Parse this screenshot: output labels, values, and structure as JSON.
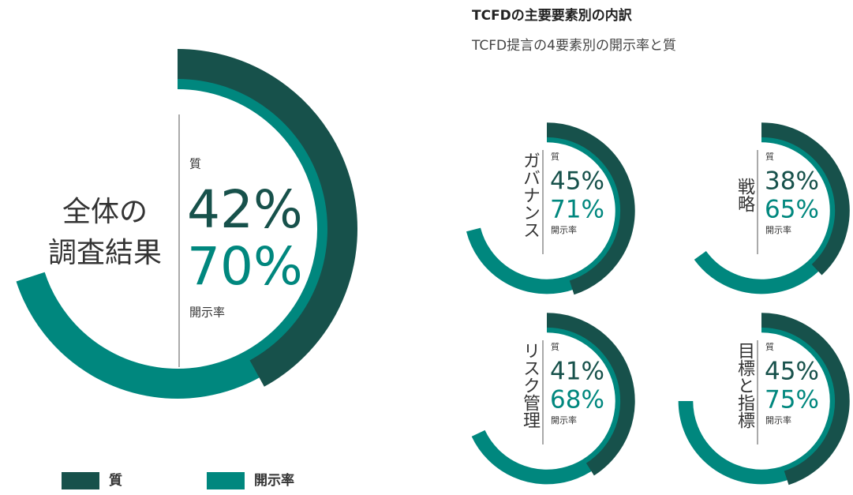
{
  "header": {
    "title": "TCFDの主要要素別の内訳",
    "subtitle": "TCFD提言の4要素別の開示率と質"
  },
  "chart_data": [
    {
      "type": "gauge",
      "title": [
        "全体の",
        "調査結果"
      ],
      "ylim": [
        0,
        100
      ],
      "series": [
        {
          "name": "質",
          "color": "#17514b",
          "values": [
            42
          ],
          "value_labels": [
            "42%"
          ]
        },
        {
          "name": "開示率",
          "color": "#00877e",
          "values": [
            70
          ],
          "value_labels": [
            "70%"
          ]
        }
      ]
    },
    {
      "type": "gauge",
      "title": "ガバナンス",
      "ylim": [
        0,
        100
      ],
      "series": [
        {
          "name": "質",
          "color": "#17514b",
          "values": [
            45
          ],
          "value_labels": [
            "45%"
          ]
        },
        {
          "name": "開示率",
          "color": "#00877e",
          "values": [
            71
          ],
          "value_labels": [
            "71%"
          ]
        }
      ]
    },
    {
      "type": "gauge",
      "title": "戦略",
      "ylim": [
        0,
        100
      ],
      "series": [
        {
          "name": "質",
          "color": "#17514b",
          "values": [
            38
          ],
          "value_labels": [
            "38%"
          ]
        },
        {
          "name": "開示率",
          "color": "#00877e",
          "values": [
            65
          ],
          "value_labels": [
            "65%"
          ]
        }
      ]
    },
    {
      "type": "gauge",
      "title": "リスク管理",
      "ylim": [
        0,
        100
      ],
      "series": [
        {
          "name": "質",
          "color": "#17514b",
          "values": [
            41
          ],
          "value_labels": [
            "41%"
          ]
        },
        {
          "name": "開示率",
          "color": "#00877e",
          "values": [
            68
          ],
          "value_labels": [
            "68%"
          ]
        }
      ]
    },
    {
      "type": "gauge",
      "title": "目標と指標",
      "ylim": [
        0,
        100
      ],
      "series": [
        {
          "name": "質",
          "color": "#17514b",
          "values": [
            45
          ],
          "value_labels": [
            "45%"
          ]
        },
        {
          "name": "開示率",
          "color": "#00877e",
          "values": [
            75
          ],
          "value_labels": [
            "75%"
          ]
        }
      ]
    }
  ]
}
